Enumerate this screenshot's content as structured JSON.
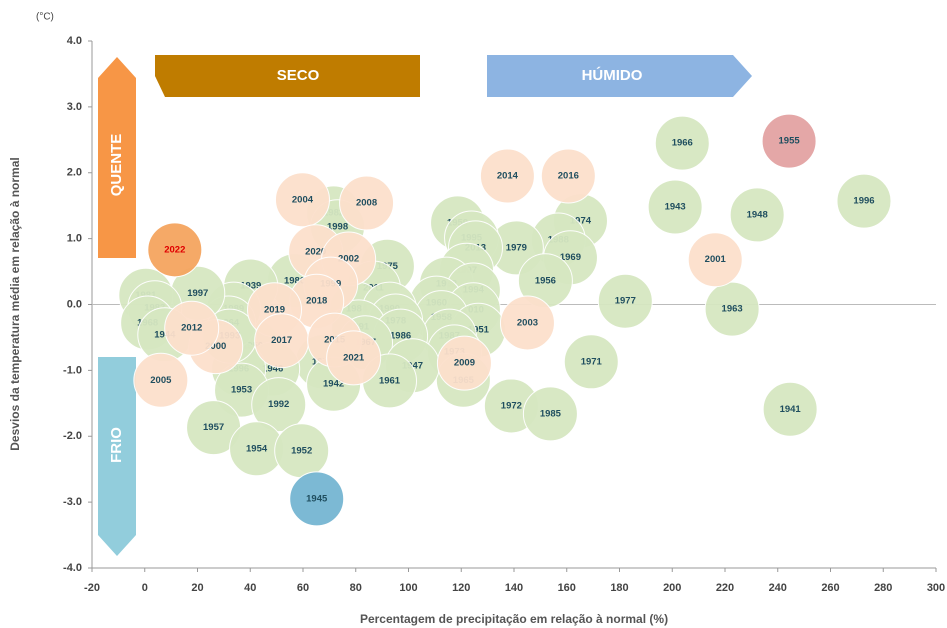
{
  "chart_data": {
    "type": "scatter",
    "unit_label": "(°C)",
    "x_label": "Percentagem de precipitação em relação à normal (%)",
    "y_label": "Desvios da temperatura média em relação à normal",
    "annotations": {
      "dry": "SECO",
      "wet": "HÚMIDO",
      "hot": "QUENTE",
      "cold": "FRIO"
    },
    "xlim": [
      -20,
      300
    ],
    "xticks": [
      -20,
      0,
      20,
      40,
      60,
      80,
      100,
      120,
      140,
      160,
      180,
      200,
      220,
      240,
      260,
      280,
      300
    ],
    "ylim": [
      -4,
      4
    ],
    "yticks": [
      {
        "value": -4,
        "label": "-4.0"
      },
      {
        "value": -3,
        "label": "-3.0"
      },
      {
        "value": -2,
        "label": "-2.0"
      },
      {
        "value": -1,
        "label": "-1.0"
      },
      {
        "value": 0,
        "label": "0.0"
      },
      {
        "value": 1,
        "label": "1.0"
      },
      {
        "value": 2,
        "label": "2.0"
      },
      {
        "value": 3,
        "label": "3.0"
      },
      {
        "value": 4,
        "label": "4.0"
      }
    ],
    "series": [
      {
        "color": "#d6e7c1",
        "label_color": "#1f4e5f",
        "labels": [
          "1966",
          "1996",
          "1943",
          "1948",
          "1974",
          "1988",
          "1969",
          "1979",
          "1959",
          "1995",
          "2013",
          "1997",
          "1962",
          "1994",
          "1956",
          "1977",
          "1963",
          "1960",
          "2010",
          "1958",
          "1951",
          "1987",
          "1973",
          "1965",
          "1971",
          "1972",
          "1985",
          "1941",
          "1982",
          "1998",
          "1975",
          "1980",
          "2011",
          "1984",
          "1990",
          "1978",
          "1991",
          "1986",
          "1967",
          "1976",
          "1947",
          "1942",
          "1961",
          "1939",
          "1950",
          "1946",
          "1996",
          "1953",
          "1992",
          "1989",
          "1964",
          "1993",
          "1997",
          "1981",
          "1983",
          "1968",
          "1944",
          "1957",
          "1954",
          "1952"
        ],
        "x": [
          203.8,
          272.7,
          201.1,
          232.2,
          165.2,
          156.8,
          161.4,
          140.9,
          118.6,
          123.9,
          125.4,
          122,
          114.4,
          124.6,
          151.9,
          182.2,
          222.7,
          110.6,
          124.6,
          112.5,
          126.5,
          115.5,
          117.4,
          120.8,
          169.3,
          139,
          153.8,
          244.7,
          71.6,
          73.1,
          92,
          56.8,
          86.7,
          80.3,
          92.8,
          95.1,
          81.1,
          97,
          83.7,
          67.4,
          101.5,
          71.6,
          92.8,
          40.2,
          40.9,
          48.5,
          35.6,
          36.7,
          50.8,
          33.7,
          31.8,
          32.2,
          20.1,
          0.4,
          3.8,
          1.1,
          7.6,
          26.1,
          42.4,
          59.5
        ],
        "y": [
          2.45,
          1.57,
          1.48,
          1.36,
          1.27,
          0.98,
          0.71,
          0.86,
          1.24,
          1.01,
          0.86,
          0.52,
          0.31,
          0.22,
          0.36,
          0.05,
          -0.07,
          0.02,
          -0.08,
          -0.2,
          -0.39,
          -0.48,
          -0.72,
          -1.15,
          -0.87,
          -1.54,
          -1.66,
          -1.59,
          1.39,
          1.18,
          0.58,
          0.36,
          0.25,
          -0.07,
          -0.07,
          -0.25,
          -0.34,
          -0.48,
          -0.58,
          -0.87,
          -0.93,
          -1.21,
          -1.16,
          0.28,
          -0.63,
          -0.98,
          -0.98,
          -1.3,
          -1.52,
          -0.07,
          -0.28,
          -0.48,
          0.17,
          0.14,
          -0.05,
          -0.28,
          -0.46,
          -1.87,
          -2.19,
          -2.22
        ]
      },
      {
        "color": "#fce0cc",
        "label_color": "#1f4e5f",
        "labels": [
          "2014",
          "2016",
          "2001",
          "2003",
          "2004",
          "2008",
          "2020",
          "2002",
          "1999",
          "2018",
          "2019",
          "2017",
          "2015",
          "2021",
          "2009",
          "2000",
          "2012",
          "2005"
        ],
        "x": [
          137.5,
          160.6,
          216.3,
          145.1,
          59.8,
          84.1,
          64.8,
          77.3,
          70.5,
          65.2,
          49.2,
          51.9,
          72,
          79.2,
          121.2,
          26.9,
          17.8,
          6.1
        ],
        "y": [
          1.95,
          1.95,
          0.68,
          -0.28,
          1.59,
          1.54,
          0.8,
          0.69,
          0.31,
          0.05,
          -0.08,
          -0.55,
          -0.54,
          -0.81,
          -0.89,
          -0.64,
          -0.36,
          -1.15
        ]
      },
      {
        "color": "#f5a55f",
        "label_color": "#e00000",
        "labels": [
          "2022"
        ],
        "x": [
          11.4
        ],
        "y": [
          0.83
        ]
      },
      {
        "color": "#e3a3a3",
        "label_color": "#1f4e5f",
        "labels": [
          "1955"
        ],
        "x": [
          244.3
        ],
        "y": [
          2.48
        ]
      },
      {
        "color": "#76b6d2",
        "label_color": "#1f4e5f",
        "labels": [
          "1945"
        ],
        "x": [
          65.2
        ],
        "y": [
          -2.95
        ]
      }
    ]
  }
}
